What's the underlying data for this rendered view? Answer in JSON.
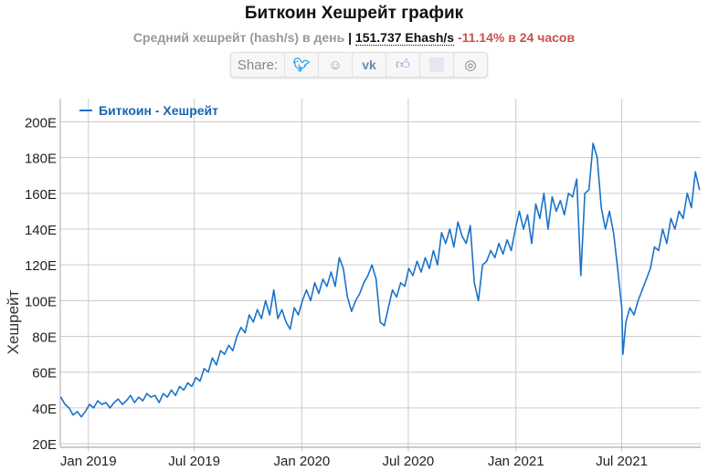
{
  "header": {
    "title": "Биткоин Хешрейт график",
    "subtitle": "Средний хешрейт (hash/s) в день",
    "separator": "|",
    "current_value": "151.737 Ehash/s",
    "change": "-11.14% в 24 часов"
  },
  "share": {
    "label": "Share:",
    "icons": [
      "twitter-icon",
      "reddit-icon",
      "vk-icon",
      "like-icon",
      "blank-icon",
      "weibo-icon"
    ]
  },
  "chart_data": {
    "type": "line",
    "title": "",
    "xlabel": "",
    "ylabel": "Хешрейт",
    "grid": true,
    "legend_position": "top-left",
    "ylim": [
      18,
      213
    ],
    "xlim": [
      "2018-11-14",
      "2021-11-13"
    ],
    "yticks": [
      20,
      40,
      60,
      80,
      100,
      120,
      140,
      160,
      180,
      200
    ],
    "ytick_labels": [
      "20E",
      "40E",
      "60E",
      "80E",
      "100E",
      "120E",
      "140E",
      "160E",
      "180E",
      "200E"
    ],
    "xticks": [
      "2019-01-01",
      "2019-07-01",
      "2020-01-01",
      "2020-07-01",
      "2021-01-01",
      "2021-07-01"
    ],
    "xtick_labels": [
      "Jan 2019",
      "Jul 2019",
      "Jan 2020",
      "Jul 2020",
      "Jan 2021",
      "Jul 2021"
    ],
    "color": "#1a73c8",
    "series": [
      {
        "name": "Биткоин - Хешрейт",
        "x": [
          "2018-11-15",
          "2018-11-22",
          "2018-11-29",
          "2018-12-06",
          "2018-12-13",
          "2018-12-20",
          "2018-12-27",
          "2019-01-03",
          "2019-01-10",
          "2019-01-17",
          "2019-01-24",
          "2019-01-31",
          "2019-02-07",
          "2019-02-14",
          "2019-02-21",
          "2019-02-28",
          "2019-03-07",
          "2019-03-14",
          "2019-03-21",
          "2019-03-28",
          "2019-04-04",
          "2019-04-11",
          "2019-04-18",
          "2019-04-25",
          "2019-05-02",
          "2019-05-09",
          "2019-05-16",
          "2019-05-23",
          "2019-05-30",
          "2019-06-06",
          "2019-06-13",
          "2019-06-20",
          "2019-06-27",
          "2019-07-04",
          "2019-07-11",
          "2019-07-18",
          "2019-07-25",
          "2019-08-01",
          "2019-08-08",
          "2019-08-15",
          "2019-08-22",
          "2019-08-29",
          "2019-09-05",
          "2019-09-12",
          "2019-09-19",
          "2019-09-26",
          "2019-10-03",
          "2019-10-10",
          "2019-10-17",
          "2019-10-24",
          "2019-10-31",
          "2019-11-07",
          "2019-11-14",
          "2019-11-21",
          "2019-11-28",
          "2019-12-05",
          "2019-12-12",
          "2019-12-19",
          "2019-12-26",
          "2020-01-02",
          "2020-01-09",
          "2020-01-16",
          "2020-01-23",
          "2020-01-30",
          "2020-02-06",
          "2020-02-13",
          "2020-02-20",
          "2020-02-27",
          "2020-03-05",
          "2020-03-12",
          "2020-03-19",
          "2020-03-26",
          "2020-04-02",
          "2020-04-09",
          "2020-04-16",
          "2020-04-23",
          "2020-04-30",
          "2020-05-07",
          "2020-05-14",
          "2020-05-21",
          "2020-05-28",
          "2020-06-04",
          "2020-06-11",
          "2020-06-18",
          "2020-06-25",
          "2020-07-02",
          "2020-07-09",
          "2020-07-16",
          "2020-07-23",
          "2020-07-30",
          "2020-08-06",
          "2020-08-13",
          "2020-08-20",
          "2020-08-27",
          "2020-09-03",
          "2020-09-10",
          "2020-09-17",
          "2020-09-24",
          "2020-10-01",
          "2020-10-08",
          "2020-10-15",
          "2020-10-22",
          "2020-10-29",
          "2020-11-05",
          "2020-11-12",
          "2020-11-19",
          "2020-11-26",
          "2020-12-03",
          "2020-12-10",
          "2020-12-17",
          "2020-12-24",
          "2020-12-31",
          "2021-01-07",
          "2021-01-14",
          "2021-01-21",
          "2021-01-28",
          "2021-02-04",
          "2021-02-11",
          "2021-02-18",
          "2021-02-25",
          "2021-03-04",
          "2021-03-11",
          "2021-03-18",
          "2021-03-25",
          "2021-04-01",
          "2021-04-08",
          "2021-04-15",
          "2021-04-22",
          "2021-04-29",
          "2021-05-06",
          "2021-05-13",
          "2021-05-20",
          "2021-05-27",
          "2021-06-03",
          "2021-06-10",
          "2021-06-17",
          "2021-06-24",
          "2021-07-01",
          "2021-07-03",
          "2021-07-08",
          "2021-07-15",
          "2021-07-22",
          "2021-07-29",
          "2021-08-05",
          "2021-08-12",
          "2021-08-19",
          "2021-08-26",
          "2021-09-02",
          "2021-09-09",
          "2021-09-16",
          "2021-09-23",
          "2021-09-30",
          "2021-10-07",
          "2021-10-14",
          "2021-10-21",
          "2021-10-28",
          "2021-11-04",
          "2021-11-11"
        ],
        "y": [
          46,
          42,
          40,
          36,
          38,
          35,
          38,
          42,
          40,
          44,
          42,
          43,
          40,
          43,
          45,
          42,
          44,
          47,
          43,
          46,
          44,
          48,
          46,
          47,
          43,
          48,
          46,
          50,
          47,
          52,
          50,
          54,
          52,
          57,
          55,
          62,
          60,
          68,
          64,
          72,
          70,
          75,
          72,
          80,
          85,
          82,
          92,
          88,
          95,
          90,
          100,
          92,
          106,
          90,
          95,
          88,
          84,
          96,
          92,
          100,
          106,
          100,
          110,
          104,
          112,
          108,
          116,
          108,
          124,
          118,
          102,
          94,
          100,
          104,
          110,
          114,
          120,
          112,
          88,
          86,
          96,
          106,
          102,
          110,
          108,
          118,
          114,
          122,
          116,
          124,
          118,
          128,
          120,
          138,
          132,
          140,
          130,
          144,
          136,
          132,
          142,
          110,
          100,
          120,
          122,
          128,
          124,
          132,
          126,
          134,
          128,
          140,
          150,
          140,
          148,
          132,
          154,
          146,
          160,
          140,
          158,
          150,
          156,
          148,
          160,
          158,
          168,
          114,
          160,
          162,
          188,
          180,
          152,
          140,
          150,
          138,
          118,
          96,
          70,
          88,
          96,
          92,
          100,
          106,
          112,
          118,
          130,
          128,
          140,
          132,
          146,
          140,
          150,
          146,
          160,
          152,
          172,
          162
        ]
      }
    ]
  }
}
